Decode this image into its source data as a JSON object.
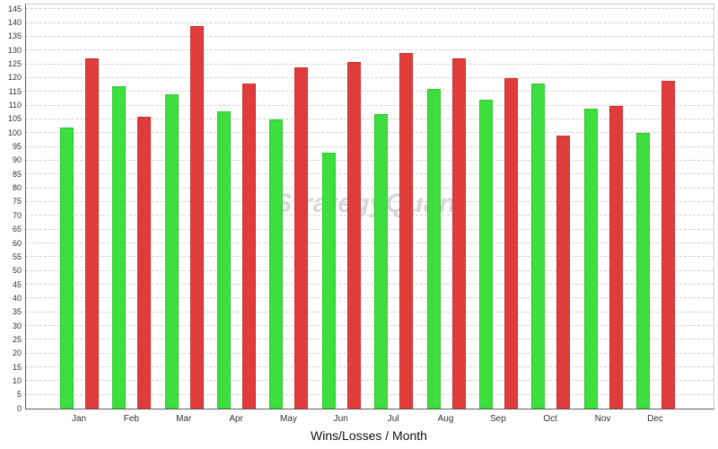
{
  "chart_data": {
    "type": "bar",
    "title": "",
    "xlabel": "Wins/Losses / Month",
    "ylabel": "",
    "categories": [
      "Jan",
      "Feb",
      "Mar",
      "Apr",
      "May",
      "Jun",
      "Jul",
      "Aug",
      "Sep",
      "Oct",
      "Nov",
      "Dec"
    ],
    "series": [
      {
        "name": "wins-green",
        "color": "#3ede3e",
        "border_color": "#2ec92e",
        "values": [
          102,
          117,
          114,
          108,
          105,
          93,
          107,
          116,
          112,
          118,
          109,
          100
        ]
      },
      {
        "name": "losses-red",
        "color": "#e03c3c",
        "border_color": "#cc3232",
        "values": [
          127,
          106,
          139,
          118,
          124,
          126,
          129,
          127,
          120,
          99,
          110,
          119
        ]
      }
    ],
    "y_ticks": [
      0,
      5,
      10,
      15,
      20,
      25,
      30,
      35,
      40,
      45,
      50,
      55,
      60,
      65,
      70,
      75,
      80,
      85,
      90,
      95,
      100,
      105,
      110,
      115,
      120,
      125,
      130,
      135,
      140,
      145
    ],
    "ylim": [
      0,
      146.7
    ],
    "grid": "horizontal-dashed",
    "legend": "none",
    "watermark": "StrategyQuant"
  },
  "colors": {
    "background": "#ffffff",
    "axis_line": "#5f5f5f",
    "plot_border": "#cccccc",
    "gridline": "#d2d2d2",
    "tick_label": "#333333",
    "watermark": "#d8d8d8",
    "axis_title": "#111111"
  }
}
